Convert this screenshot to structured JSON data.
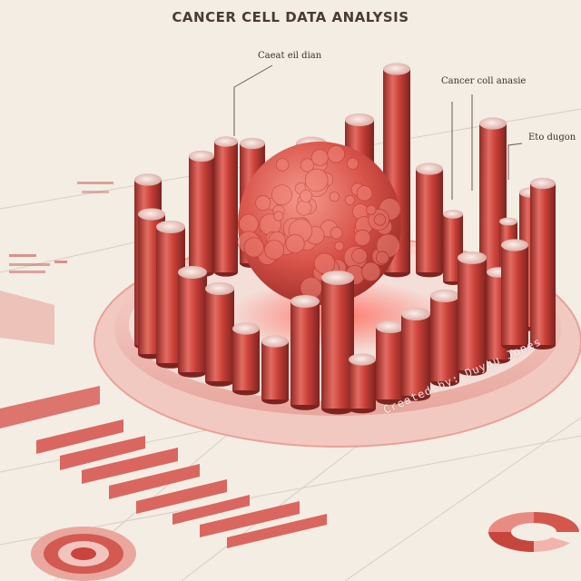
{
  "header": {
    "title": "CANCER CELL DATA ANALYSIS"
  },
  "callouts": {
    "top_center": "Caeat eil dian",
    "top_right": "Cancer coll anasie",
    "far_right": "Eto dugon"
  },
  "watermark": {
    "text": "Created by: Duygu Jones"
  },
  "colors": {
    "background": "#f3ede4",
    "accent": "#c9443c",
    "accent_light": "#e98a82",
    "text": "#4a3b35"
  }
}
